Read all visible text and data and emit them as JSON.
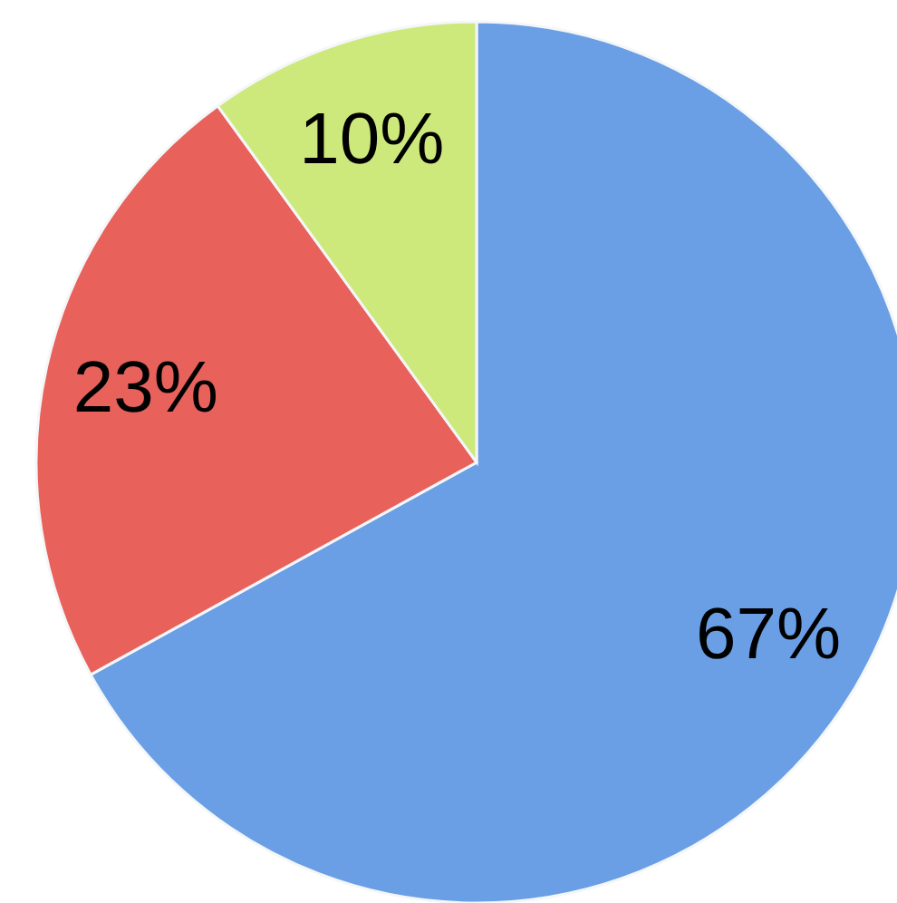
{
  "chart_data": {
    "type": "pie",
    "categories": [
      null,
      null,
      null
    ],
    "values": [
      67,
      23,
      10
    ],
    "colors": [
      "#6a9fe6",
      "#e8615b",
      "#cde97b"
    ],
    "value_labels": [
      "67%",
      "23%",
      "10%"
    ]
  }
}
